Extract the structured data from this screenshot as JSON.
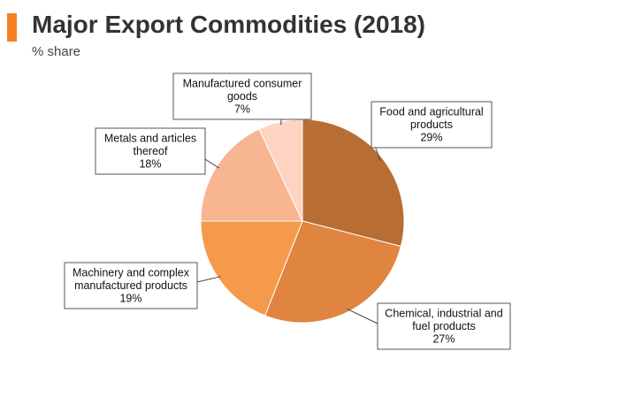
{
  "header": {
    "title": "Major Export Commodities (2018)",
    "subtitle": "% share"
  },
  "colors": {
    "accent": "#f58220"
  },
  "chart_data": {
    "type": "pie",
    "title": "Major Export Commodities (2018)",
    "subtitle": "% share",
    "unit": "%",
    "start_angle_deg": 0,
    "direction": "clockwise",
    "slices": [
      {
        "label": [
          "Food and agricultural",
          "products"
        ],
        "value": 29,
        "value_label": "29%",
        "color": "#b86e33"
      },
      {
        "label": [
          "Chemical, industrial and",
          "fuel products"
        ],
        "value": 27,
        "value_label": "27%",
        "color": "#df853f"
      },
      {
        "label": [
          "Machinery and complex",
          "manufactured products"
        ],
        "value": 19,
        "value_label": "19%",
        "color": "#f59a4a"
      },
      {
        "label": [
          "Metals and articles",
          "thereof"
        ],
        "value": 18,
        "value_label": "18%",
        "color": "#f8b591"
      },
      {
        "label": [
          "Manufactured consumer",
          "goods"
        ],
        "value": 7,
        "value_label": "7%",
        "color": "#fcd4c1"
      }
    ]
  }
}
